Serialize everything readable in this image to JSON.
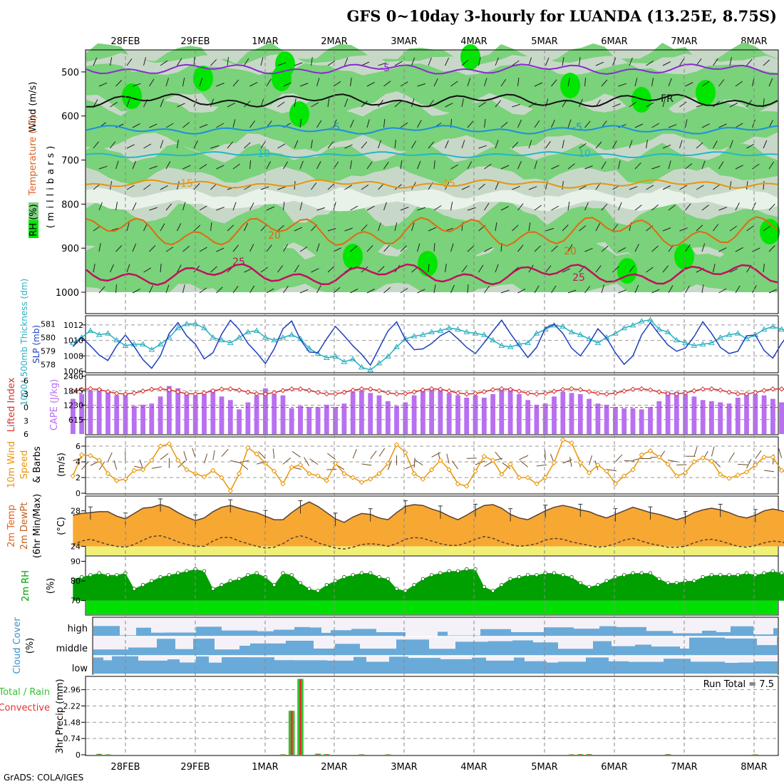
{
  "title": "GFS 0~10day 3-hourly for LUANDA (13.25E, 8.75S)",
  "credit": "GrADS: COLA/IGES",
  "run_total_label": "Run Total = 7.5",
  "colors": {
    "rh_dark": "#00e600",
    "rh_mid": "#7ad27a",
    "rh_light": "#c8d8c8",
    "rh_pale": "#e8f2e8",
    "slp": "#1f3fbf",
    "thickness": "#2ab0c0",
    "cape": "#b870f0",
    "lifted_index": "#d83030",
    "wind_speed": "#e8960a",
    "temp_fill": "#f7a833",
    "dewpt_fill": "#f0f078",
    "rh2m_dark": "#00a000",
    "rh2m_light": "#00e000",
    "cloud": "#6aaad8",
    "precip_total": "#36c236",
    "precip_conv": "#e83030",
    "grid": "#999999"
  },
  "date_labels": [
    "28FEB",
    "29FEB",
    "1MAR",
    "2MAR",
    "3MAR",
    "4MAR",
    "5MAR",
    "6MAR",
    "7MAR",
    "8MAR"
  ],
  "panels": {
    "upper_air": {
      "ylabel_wind": "Wind (m/s)",
      "ylabel_temp": "Temperature (°C)",
      "ylabel_rh": "RH (%)",
      "ylabel_p": "(millibars)",
      "y_ticks": [
        "500",
        "600",
        "700",
        "800",
        "900",
        "1000"
      ],
      "contour_labels": [
        "-5",
        "FR",
        "-5",
        "-5",
        "10",
        "10",
        "15",
        "15",
        "20",
        "20",
        "25",
        "25"
      ]
    },
    "slp_thickness": {
      "ylabel_slp": "SLP (mb)",
      "ylabel_thick": "1000~500mb Thickness (dm)",
      "slp_ticks": [
        "1012",
        "1010",
        "1008",
        "1006"
      ],
      "thick_ticks": [
        "581",
        "580",
        "579",
        "578"
      ]
    },
    "cape_li": {
      "ylabel_li": "Lifted Index",
      "ylabel_cape": "CAPE (J/kg)",
      "li_ticks": [
        "-6",
        "-3",
        "0",
        "3",
        "6"
      ],
      "cape_ticks": [
        "2460",
        "1845",
        "1230",
        "615"
      ]
    },
    "wind10m": {
      "ylabel_a": "10m Wind",
      "ylabel_b": "Speed",
      "ylabel_c": "& Barbs",
      "ylabel_unit": "(m/s)",
      "ticks": [
        "6",
        "4",
        "2",
        "0"
      ]
    },
    "temp2m": {
      "ylabel_a": "2m Temp",
      "ylabel_b": "2m DewPt",
      "ylabel_c": "(6hr Min/Max)",
      "ylabel_unit": "(°C)",
      "ticks": [
        "28",
        "24"
      ]
    },
    "rh2m": {
      "ylabel": "2m RH",
      "unit": "(%)",
      "ticks": [
        "90",
        "80",
        "70"
      ]
    },
    "cloud": {
      "ylabel": "Cloud Cover",
      "unit": "(%)",
      "levels": [
        "high",
        "middle",
        "low"
      ]
    },
    "precip": {
      "ylabel_a": "Total / Rain",
      "ylabel_b": "Convective",
      "ylabel_c": "3hr Precip (mm)",
      "ticks": [
        "2.96",
        "2.22",
        "1.48",
        "0.74",
        "0"
      ]
    }
  },
  "chart_data": [
    {
      "type": "line",
      "name": "SLP (mb)",
      "x_start": "27FEB 06Z",
      "x_step_hours": 3,
      "values": [
        1009.2,
        1010.4,
        1009.3,
        1008.1,
        1007.4,
        1009.3,
        1010.7,
        1009.2,
        1007.5,
        1006.4,
        1008.0,
        1010.9,
        1012.3,
        1010.6,
        1009.5,
        1007.6,
        1008.4,
        1010.8,
        1012.6,
        1011.4,
        1009.6,
        1008.4,
        1007.0,
        1008.9,
        1011.5,
        1012.5,
        1010.1,
        1008.5,
        1008.4,
        1010.2,
        1011.8,
        1010.6,
        1009.3,
        1008.2,
        1006.8,
        1009.0,
        1011.2,
        1012.4,
        1010.1,
        1008.8,
        1008.9,
        1009.6,
        1010.6,
        1011.2,
        1010.2,
        1009.1,
        1008.3,
        1009.7,
        1011.2,
        1012.6,
        1010.9,
        1009.3,
        1007.8,
        1009.1,
        1011.6,
        1012.1,
        1010.9,
        1009.0,
        1008.0,
        1009.6,
        1011.5,
        1010.3,
        1008.4,
        1006.9,
        1008.0,
        1010.7,
        1012.3,
        1010.8,
        1009.4,
        1008.6,
        1009.0,
        1010.5,
        1012.4,
        1010.9,
        1009.1,
        1008.3,
        1008.6,
        1010.6,
        1010.7,
        1008.7,
        1007.7,
        1009.6,
        1011.1,
        1009.6,
        1008.4,
        1009.9,
        1011.2,
        1012.5,
        1011.0,
        1009.4,
        1008.5,
        1010.2,
        1012.8,
        1011.4,
        1009.3,
        1008.4,
        1009.0,
        1010.4,
        1010.8,
        1011.5,
        1012.4
      ],
      "ylim": [
        1006,
        1013
      ]
    },
    {
      "type": "line",
      "name": "1000~500mb Thickness (dm)",
      "x_start": "27FEB 06Z",
      "x_step_hours": 3,
      "values": [
        579.6,
        580.0,
        580.5,
        580.2,
        580.3,
        579.8,
        579.4,
        579.5,
        579.5,
        579.1,
        579.5,
        580.0,
        580.7,
        581.0,
        581.0,
        580.7,
        580.0,
        579.8,
        579.6,
        580.0,
        580.4,
        580.5,
        580.0,
        579.8,
        580.0,
        580.2,
        579.9,
        579.2,
        578.8,
        578.5,
        578.6,
        578.2,
        578.4,
        577.8,
        577.6,
        578.1,
        578.6,
        579.3,
        579.9,
        580.1,
        580.2,
        580.4,
        580.5,
        580.7,
        580.6,
        580.4,
        580.3,
        580.2,
        579.8,
        579.4,
        579.3,
        579.5,
        579.6,
        580.3,
        580.6,
        580.9,
        580.8,
        580.4,
        580.2,
        579.9,
        579.6,
        580.0,
        580.3,
        580.7,
        580.9,
        581.2,
        581.3,
        580.6,
        580.4,
        579.8,
        579.6,
        579.4,
        579.5,
        579.6,
        580.0,
        580.2,
        580.3,
        579.9,
        580.2,
        580.6,
        580.8,
        580.6,
        580.5,
        580.1,
        579.6,
        580.0,
        580.3,
        580.5,
        580.2,
        579.9,
        579.7,
        579.5,
        579.5,
        579.6,
        579.6,
        579.6,
        579.3,
        579.0,
        578.5,
        578.2,
        578.2
      ],
      "ylim": [
        577.5,
        581.5
      ]
    },
    {
      "type": "bar",
      "name": "CAPE (J/kg)",
      "x_start": "27FEB 06Z",
      "x_step_hours": 3,
      "values": [
        1500,
        1700,
        1850,
        1950,
        1800,
        1650,
        1700,
        1200,
        1250,
        1300,
        1600,
        2050,
        1950,
        1750,
        1650,
        1700,
        1900,
        1600,
        1450,
        1050,
        1350,
        1650,
        1950,
        1700,
        1650,
        1100,
        1200,
        1150,
        1150,
        1250,
        1150,
        1300,
        1800,
        1850,
        1750,
        1650,
        1400,
        1200,
        1350,
        1650,
        1900,
        1950,
        1900,
        1750,
        1650,
        1550,
        1650,
        1550,
        1700,
        1900,
        1950,
        1700,
        1450,
        1250,
        1300,
        1600,
        1800,
        1750,
        1700,
        1500,
        1300,
        1250,
        1150,
        1100,
        1100,
        1050,
        1150,
        1400,
        1800,
        1800,
        1700,
        1600,
        1450,
        1400,
        1350,
        1300,
        1550,
        1700,
        1700,
        1650,
        1500,
        1350,
        1300,
        1550,
        1650,
        1600,
        1600,
        1500,
        1450,
        1400,
        1300,
        1350,
        1650,
        1750,
        1800,
        1700,
        1450,
        1300,
        1250,
        1200,
        1150
      ],
      "ylim": [
        0,
        2460
      ]
    },
    {
      "type": "line",
      "name": "10m Wind Speed (m/s)",
      "x_start": "27FEB 06Z",
      "x_step_hours": 3,
      "values": [
        2.2,
        4.9,
        4.8,
        4.2,
        2.5,
        1.6,
        1.8,
        2.9,
        3.0,
        4.2,
        6.0,
        6.3,
        4.2,
        3.0,
        2.5,
        2.1,
        2.9,
        2.0,
        0.3,
        2.5,
        5.8,
        5.0,
        3.8,
        2.8,
        1.2,
        3.3,
        3.6,
        2.5,
        2.2,
        1.6,
        3.8,
        2.5,
        2.0,
        1.4,
        1.8,
        2.5,
        3.8,
        6.2,
        5.2,
        2.5,
        1.8,
        3.0,
        4.2,
        3.0,
        1.2,
        0.9,
        2.8,
        4.7,
        4.2,
        2.4,
        3.7,
        2.0,
        2.0,
        1.2,
        2.0,
        3.9,
        6.8,
        6.4,
        3.9,
        2.6,
        3.6,
        2.8,
        1.2,
        2.2,
        3.0,
        4.9,
        5.4,
        4.6,
        3.7,
        2.2,
        2.6,
        4.0,
        4.5,
        4.1,
        2.4,
        1.9,
        2.3,
        2.7,
        3.6,
        4.6,
        4.6,
        2.9,
        2.4,
        1.7,
        1.6,
        2.3,
        3.8,
        5.2,
        5.1,
        4.3,
        2.8,
        1.8,
        1.5,
        0.6
      ],
      "ylim": [
        0,
        7
      ]
    },
    {
      "type": "area",
      "name": "2m Temp (°C)",
      "x_start": "27FEB 06Z",
      "x_step_hours": 3,
      "values": [
        27.5,
        27.7,
        27.8,
        27.9,
        27.9,
        27.4,
        27.1,
        27.7,
        28.3,
        28.4,
        28.7,
        28.4,
        27.8,
        27.3,
        26.9,
        27.2,
        27.9,
        28.4,
        28.6,
        28.3,
        28.0,
        27.8,
        27.4,
        27.0,
        27.0,
        27.8,
        28.5,
        29.0,
        28.5,
        27.8,
        27.1,
        26.7,
        27.3,
        27.7,
        27.6,
        27.2,
        27.0,
        27.8,
        28.5,
        28.7,
        28.6,
        28.2,
        27.9,
        27.4,
        27.0,
        27.5,
        28.1,
        28.6,
        28.7,
        28.3,
        27.6,
        27.2,
        27.0,
        27.5,
        28.0,
        28.4,
        28.6,
        28.4,
        28.1,
        27.9,
        27.5,
        27.2,
        27.6,
        28.0,
        28.4,
        28.1,
        27.8,
        27.6,
        27.3,
        27.0,
        27.3,
        27.8,
        28.1,
        28.3,
        28.1,
        27.8,
        27.4,
        27.2,
        27.5,
        28.0,
        28.2,
        28.0,
        27.7,
        27.4,
        27.1,
        27.2,
        27.8,
        28.1,
        28.1,
        27.9,
        27.5,
        27.2,
        27.1,
        27.3,
        27.0
      ],
      "ylim": [
        23,
        29.5
      ]
    },
    {
      "type": "line",
      "name": "2m DewPt (°C)",
      "x_start": "27FEB 06Z",
      "x_step_hours": 3,
      "values": [
        24.2,
        24.6,
        24.8,
        24.5,
        24.2,
        24.0,
        23.9,
        24.2,
        24.7,
        25.1,
        25.2,
        24.9,
        24.5,
        24.2,
        24.0,
        24.0,
        24.6,
        25.0,
        25.0,
        24.6,
        24.3,
        24.0,
        23.8,
        23.9,
        24.3,
        24.9,
        25.2,
        24.9,
        24.4,
        24.1,
        23.8,
        23.7,
        23.9,
        24.2,
        24.3,
        24.2,
        24.0,
        24.3,
        24.8,
        25.0,
        24.9,
        24.6,
        24.3,
        24.1,
        24.1,
        24.4,
        24.8,
        25.1,
        24.9,
        24.5,
        24.2,
        24.0,
        24.1,
        24.3,
        24.7,
        24.9,
        24.8,
        24.5,
        24.3,
        24.1,
        23.9,
        24.0,
        24.3,
        24.7,
        24.9,
        24.6,
        24.3,
        24.1,
        23.9,
        23.9,
        24.0,
        24.4,
        24.7,
        24.8,
        24.6,
        24.3,
        24.0,
        23.9,
        24.1,
        24.4,
        24.6,
        24.5,
        24.2,
        24.0,
        23.8,
        24.0,
        24.3,
        24.5,
        24.4,
        24.1,
        23.9,
        23.7,
        23.9,
        24.0,
        23.6
      ],
      "ylim": [
        23,
        29.5
      ]
    },
    {
      "type": "area",
      "name": "2m RH (%)",
      "x_start": "27FEB 06Z",
      "x_step_hours": 3,
      "values": [
        81,
        82,
        83,
        84,
        83,
        83,
        84,
        76,
        78,
        80,
        82,
        83,
        84,
        85,
        86,
        85,
        76,
        78,
        80,
        81,
        83,
        84,
        82,
        78,
        84,
        83,
        79,
        76,
        75,
        78,
        80,
        82,
        83,
        84,
        84,
        82,
        81,
        76,
        75,
        78,
        81,
        83,
        84,
        85,
        85,
        86,
        86,
        77,
        75,
        78,
        81,
        82,
        83,
        83,
        84,
        84,
        83,
        82,
        79,
        77,
        78,
        80,
        82,
        83,
        84,
        84,
        84,
        81,
        79,
        79,
        80,
        80,
        82,
        83,
        83,
        83,
        83,
        84,
        83,
        84,
        85,
        84,
        83,
        80,
        78,
        79,
        81,
        83,
        84,
        84,
        83,
        82,
        80,
        78,
        79
      ],
      "ylim": [
        63,
        92
      ]
    },
    {
      "type": "bar",
      "name": "3hr Precip (mm)",
      "x_start": "27FEB 06Z",
      "x_step_hours": 3,
      "series": [
        {
          "name": "Total / Rain",
          "values": [
            0,
            0,
            0,
            0.04,
            0.02,
            0,
            0,
            0,
            0,
            0,
            0,
            0,
            0,
            0,
            0,
            0,
            0,
            0,
            0,
            0,
            0,
            0,
            0,
            0,
            0.02,
            2.0,
            3.45,
            0,
            0.05,
            0.03,
            0,
            0,
            0,
            0.02,
            0,
            0,
            0.02,
            0,
            0,
            0,
            0,
            0,
            0,
            0,
            0,
            0,
            0,
            0,
            0,
            0,
            0,
            0,
            0,
            0,
            0,
            0,
            0,
            0.02,
            0.03,
            0.03,
            0,
            0,
            0,
            0,
            0,
            0,
            0,
            0,
            0.03,
            0,
            0,
            0,
            0,
            0,
            0,
            0,
            0,
            0,
            0.02,
            0,
            0,
            0,
            0,
            0,
            0,
            0.07,
            0.08,
            0.08,
            0.03,
            0,
            0,
            0,
            0,
            0,
            0.06,
            0.06,
            0.06
          ]
        },
        {
          "name": "Convective",
          "values": [
            0,
            0,
            0,
            0.04,
            0.02,
            0,
            0,
            0,
            0,
            0,
            0,
            0,
            0,
            0,
            0,
            0,
            0,
            0,
            0,
            0,
            0,
            0,
            0,
            0,
            0.02,
            2.0,
            3.45,
            0,
            0.05,
            0.03,
            0,
            0,
            0,
            0.02,
            0,
            0,
            0.02,
            0,
            0,
            0,
            0,
            0,
            0,
            0,
            0,
            0,
            0,
            0,
            0,
            0,
            0,
            0,
            0,
            0,
            0,
            0,
            0,
            0.02,
            0.03,
            0.03,
            0,
            0,
            0,
            0,
            0,
            0,
            0,
            0,
            0.03,
            0,
            0,
            0,
            0,
            0,
            0,
            0,
            0,
            0,
            0.02,
            0,
            0,
            0,
            0,
            0,
            0,
            0.07,
            0.08,
            0.08,
            0.03,
            0,
            0,
            0,
            0,
            0,
            0.06,
            0.06,
            0.06
          ]
        }
      ],
      "ylim": [
        0,
        3.5
      ]
    }
  ]
}
